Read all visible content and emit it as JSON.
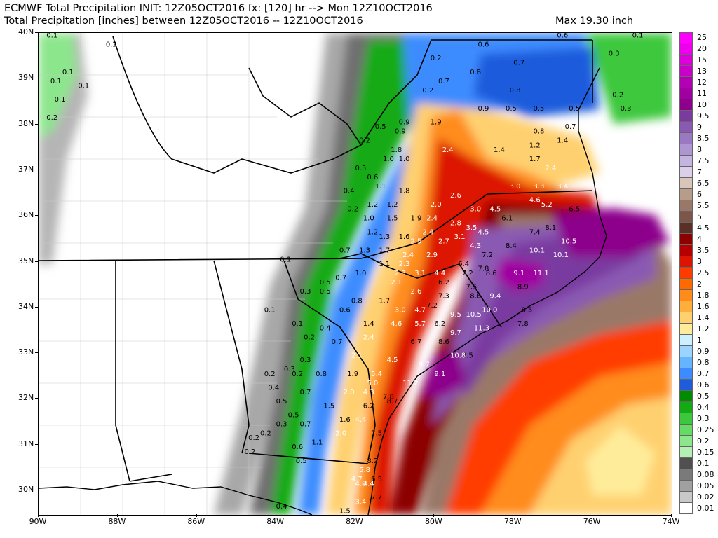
{
  "header": {
    "title_line1": "ECMWF Total Precipitation INIT: 12Z05OCT2016 fx: [120] hr --> Mon 12Z10OCT2016",
    "title_line2": "Total Precipitation [inches] between 12Z05OCT2016 -- 12Z10OCT2016",
    "max_text": "Max 19.30 inch"
  },
  "axes": {
    "lat_labels": [
      "40N",
      "39N",
      "38N",
      "37N",
      "36N",
      "35N",
      "34N",
      "33N",
      "32N",
      "31N",
      "30N"
    ],
    "lon_labels": [
      "90W",
      "88W",
      "86W",
      "84W",
      "82W",
      "80W",
      "78W",
      "76W",
      "74W"
    ]
  },
  "colorbar": {
    "levels": [
      "25",
      "20",
      "15",
      "13",
      "12",
      "11",
      "10",
      "9.5",
      "9",
      "8.5",
      "8",
      "7.5",
      "7",
      "6.5",
      "6",
      "5.5",
      "5",
      "4.5",
      "4",
      "3.5",
      "3",
      "2.5",
      "2",
      "1.8",
      "1.6",
      "1.4",
      "1.2",
      "1",
      "0.9",
      "0.8",
      "0.7",
      "0.6",
      "0.5",
      "0.4",
      "0.3",
      "0.25",
      "0.2",
      "0.15",
      "0.1",
      "0.08",
      "0.05",
      "0.02",
      "0.01"
    ],
    "colors": [
      "#ff00ff",
      "#ee00ee",
      "#dd00dd",
      "#c800c8",
      "#b400b4",
      "#a000a0",
      "#8c008c",
      "#7a3aa0",
      "#8a5ab2",
      "#9a78c2",
      "#ae96d2",
      "#c4b4e0",
      "#dccfea",
      "#d8c4b8",
      "#b89c8a",
      "#9a7868",
      "#7c5648",
      "#5a3026",
      "#8c0000",
      "#b40000",
      "#dc1400",
      "#ff3c00",
      "#ff6a00",
      "#ff8c1a",
      "#ffae3c",
      "#ffd070",
      "#ffec9a",
      "#cdefff",
      "#9ad4ff",
      "#64b4ff",
      "#3c8cff",
      "#1e5cdc",
      "#008c00",
      "#14aa14",
      "#3cc83c",
      "#64dc64",
      "#8ce68c",
      "#b4f0b4",
      "#505050",
      "#7a7a7a",
      "#a0a0a0",
      "#c8c8c8",
      "#ffffff"
    ]
  },
  "map_values": [
    {
      "v": "0.1",
      "lon": -89.8,
      "lat": 39.9
    },
    {
      "v": "0.2",
      "lon": -88.3,
      "lat": 39.7
    },
    {
      "v": "0.1",
      "lon": -89.4,
      "lat": 39.1
    },
    {
      "v": "0.1",
      "lon": -89.7,
      "lat": 38.9
    },
    {
      "v": "0.1",
      "lon": -89.0,
      "lat": 38.8
    },
    {
      "v": "0.1",
      "lon": -89.6,
      "lat": 38.5
    },
    {
      "v": "0.2",
      "lon": -89.8,
      "lat": 38.1
    },
    {
      "v": "0.6",
      "lon": -78.9,
      "lat": 39.7
    },
    {
      "v": "0.6",
      "lon": -76.9,
      "lat": 39.9
    },
    {
      "v": "0.2",
      "lon": -76.3,
      "lat": 40.0
    },
    {
      "v": "0.1",
      "lon": -75.0,
      "lat": 39.9
    },
    {
      "v": "0.2",
      "lon": -80.1,
      "lat": 39.4
    },
    {
      "v": "0.7",
      "lon": -79.9,
      "lat": 38.9
    },
    {
      "v": "0.8",
      "lon": -79.1,
      "lat": 39.1
    },
    {
      "v": "0.7",
      "lon": -78.0,
      "lat": 39.3
    },
    {
      "v": "0.2",
      "lon": -80.3,
      "lat": 38.7
    },
    {
      "v": "0.8",
      "lon": -78.1,
      "lat": 38.7
    },
    {
      "v": "0.3",
      "lon": -75.6,
      "lat": 39.5
    },
    {
      "v": "0.2",
      "lon": -75.5,
      "lat": 38.6
    },
    {
      "v": "0.9",
      "lon": -78.9,
      "lat": 38.3
    },
    {
      "v": "0.5",
      "lon": -78.2,
      "lat": 38.3
    },
    {
      "v": "0.5",
      "lon": -77.5,
      "lat": 38.3
    },
    {
      "v": "0.5",
      "lon": -76.6,
      "lat": 38.3
    },
    {
      "v": "0.3",
      "lon": -75.3,
      "lat": 38.3
    },
    {
      "v": "0.5",
      "lon": -81.5,
      "lat": 37.9
    },
    {
      "v": "0.9",
      "lon": -80.9,
      "lat": 38.0
    },
    {
      "v": "1.9",
      "lon": -80.1,
      "lat": 38.0
    },
    {
      "v": "0.9",
      "lon": -81.0,
      "lat": 37.8
    },
    {
      "v": "0.2",
      "lon": -81.9,
      "lat": 37.6
    },
    {
      "v": "0.8",
      "lon": -77.5,
      "lat": 37.8
    },
    {
      "v": "0.7",
      "lon": -76.7,
      "lat": 37.9
    },
    {
      "v": "1.8",
      "lon": -81.1,
      "lat": 37.4
    },
    {
      "v": "2.4",
      "lon": -79.8,
      "lat": 37.4
    },
    {
      "v": "1.4",
      "lon": -78.5,
      "lat": 37.4
    },
    {
      "v": "1.2",
      "lon": -77.6,
      "lat": 37.5
    },
    {
      "v": "1.4",
      "lon": -76.9,
      "lat": 37.6
    },
    {
      "v": "1.0",
      "lon": -81.3,
      "lat": 37.2
    },
    {
      "v": "1.0",
      "lon": -80.9,
      "lat": 37.2
    },
    {
      "v": "1.7",
      "lon": -77.6,
      "lat": 37.2
    },
    {
      "v": "2.4",
      "lon": -77.2,
      "lat": 37.0
    },
    {
      "v": "0.5",
      "lon": -82.0,
      "lat": 37.0
    },
    {
      "v": "0.6",
      "lon": -81.7,
      "lat": 36.8
    },
    {
      "v": "1.1",
      "lon": -81.5,
      "lat": 36.6
    },
    {
      "v": "1.8",
      "lon": -80.9,
      "lat": 36.5
    },
    {
      "v": "2.6",
      "lon": -79.6,
      "lat": 36.4
    },
    {
      "v": "3.0",
      "lon": -78.1,
      "lat": 36.6
    },
    {
      "v": "3.3",
      "lon": -77.5,
      "lat": 36.6
    },
    {
      "v": "3.4",
      "lon": -76.9,
      "lat": 36.6
    },
    {
      "v": "0.4",
      "lon": -82.3,
      "lat": 36.5
    },
    {
      "v": "1.2",
      "lon": -81.7,
      "lat": 36.2
    },
    {
      "v": "1.2",
      "lon": -81.2,
      "lat": 36.2
    },
    {
      "v": "2.0",
      "lon": -80.1,
      "lat": 36.2
    },
    {
      "v": "4.6",
      "lon": -77.6,
      "lat": 36.3
    },
    {
      "v": "5.2",
      "lon": -77.3,
      "lat": 36.2
    },
    {
      "v": "6.5",
      "lon": -76.6,
      "lat": 36.1
    },
    {
      "v": "0.2",
      "lon": -82.2,
      "lat": 36.1
    },
    {
      "v": "1.0",
      "lon": -81.8,
      "lat": 35.9
    },
    {
      "v": "1.5",
      "lon": -81.2,
      "lat": 35.9
    },
    {
      "v": "1.9",
      "lon": -80.6,
      "lat": 35.9
    },
    {
      "v": "2.4",
      "lon": -80.2,
      "lat": 35.9
    },
    {
      "v": "3.0",
      "lon": -79.1,
      "lat": 36.1
    },
    {
      "v": "4.5",
      "lon": -78.6,
      "lat": 36.1
    },
    {
      "v": "2.8",
      "lon": -79.6,
      "lat": 35.8
    },
    {
      "v": "6.1",
      "lon": -78.3,
      "lat": 35.9
    },
    {
      "v": "3.5",
      "lon": -79.2,
      "lat": 35.7
    },
    {
      "v": "4.5",
      "lon": -78.9,
      "lat": 35.6
    },
    {
      "v": "7.4",
      "lon": -77.6,
      "lat": 35.6
    },
    {
      "v": "8.1",
      "lon": -77.2,
      "lat": 35.7
    },
    {
      "v": "1.2",
      "lon": -81.7,
      "lat": 35.6
    },
    {
      "v": "1.3",
      "lon": -81.4,
      "lat": 35.5
    },
    {
      "v": "1.6",
      "lon": -80.9,
      "lat": 35.5
    },
    {
      "v": "2.4",
      "lon": -80.3,
      "lat": 35.6
    },
    {
      "v": "2.5",
      "lon": -80.6,
      "lat": 35.4
    },
    {
      "v": "2.7",
      "lon": -79.9,
      "lat": 35.4
    },
    {
      "v": "3.1",
      "lon": -79.5,
      "lat": 35.5
    },
    {
      "v": "4.3",
      "lon": -79.1,
      "lat": 35.3
    },
    {
      "v": "8.4",
      "lon": -78.2,
      "lat": 35.3
    },
    {
      "v": "10.5",
      "lon": -76.8,
      "lat": 35.4
    },
    {
      "v": "0.7",
      "lon": -82.4,
      "lat": 35.2
    },
    {
      "v": "1.3",
      "lon": -81.9,
      "lat": 35.2
    },
    {
      "v": "1.7",
      "lon": -81.4,
      "lat": 35.2
    },
    {
      "v": "2.4",
      "lon": -80.8,
      "lat": 35.1
    },
    {
      "v": "2.9",
      "lon": -80.2,
      "lat": 35.1
    },
    {
      "v": "7.2",
      "lon": -78.8,
      "lat": 35.1
    },
    {
      "v": "10.1",
      "lon": -77.6,
      "lat": 35.2
    },
    {
      "v": "10.1",
      "lon": -77.0,
      "lat": 35.1
    },
    {
      "v": "0.1",
      "lon": -83.9,
      "lat": 35.0
    },
    {
      "v": "1.1",
      "lon": -81.4,
      "lat": 34.9
    },
    {
      "v": "2.3",
      "lon": -80.9,
      "lat": 34.9
    },
    {
      "v": "6.4",
      "lon": -79.4,
      "lat": 34.9
    },
    {
      "v": "7.8",
      "lon": -78.9,
      "lat": 34.8
    },
    {
      "v": "1.0",
      "lon": -82.0,
      "lat": 34.7
    },
    {
      "v": "2.3",
      "lon": -81.0,
      "lat": 34.7
    },
    {
      "v": "3.1",
      "lon": -80.5,
      "lat": 34.7
    },
    {
      "v": "4.4",
      "lon": -80.0,
      "lat": 34.7
    },
    {
      "v": "7.2",
      "lon": -79.3,
      "lat": 34.7
    },
    {
      "v": "8.6",
      "lon": -78.7,
      "lat": 34.7
    },
    {
      "v": "9.1",
      "lon": -78.0,
      "lat": 34.7
    },
    {
      "v": "11.1",
      "lon": -77.5,
      "lat": 34.7
    },
    {
      "v": "0.5",
      "lon": -82.9,
      "lat": 34.5
    },
    {
      "v": "0.7",
      "lon": -82.5,
      "lat": 34.6
    },
    {
      "v": "2.1",
      "lon": -81.1,
      "lat": 34.5
    },
    {
      "v": "6.2",
      "lon": -79.9,
      "lat": 34.5
    },
    {
      "v": "7.5",
      "lon": -79.2,
      "lat": 34.4
    },
    {
      "v": "8.9",
      "lon": -77.9,
      "lat": 34.4
    },
    {
      "v": "0.3",
      "lon": -83.4,
      "lat": 34.3
    },
    {
      "v": "0.5",
      "lon": -82.9,
      "lat": 34.3
    },
    {
      "v": "2.6",
      "lon": -80.6,
      "lat": 34.3
    },
    {
      "v": "7.3",
      "lon": -79.9,
      "lat": 34.2
    },
    {
      "v": "8.6",
      "lon": -79.1,
      "lat": 34.2
    },
    {
      "v": "9.4",
      "lon": -78.6,
      "lat": 34.2
    },
    {
      "v": "0.8",
      "lon": -82.1,
      "lat": 34.1
    },
    {
      "v": "1.7",
      "lon": -81.4,
      "lat": 34.1
    },
    {
      "v": "7.2",
      "lon": -80.2,
      "lat": 34.0
    },
    {
      "v": "0.1",
      "lon": -84.3,
      "lat": 33.9
    },
    {
      "v": "0.6",
      "lon": -82.4,
      "lat": 33.9
    },
    {
      "v": "3.0",
      "lon": -81.0,
      "lat": 33.9
    },
    {
      "v": "4.7",
      "lon": -80.5,
      "lat": 33.9
    },
    {
      "v": "10.0",
      "lon": -78.8,
      "lat": 33.9
    },
    {
      "v": "8.5",
      "lon": -77.8,
      "lat": 33.9
    },
    {
      "v": "9.5",
      "lon": -79.6,
      "lat": 33.8
    },
    {
      "v": "10.5",
      "lon": -79.2,
      "lat": 33.8
    },
    {
      "v": "0.1",
      "lon": -83.6,
      "lat": 33.6
    },
    {
      "v": "0.4",
      "lon": -82.9,
      "lat": 33.5
    },
    {
      "v": "1.4",
      "lon": -81.8,
      "lat": 33.6
    },
    {
      "v": "4.6",
      "lon": -81.1,
      "lat": 33.6
    },
    {
      "v": "5.7",
      "lon": -80.5,
      "lat": 33.6
    },
    {
      "v": "6.2",
      "lon": -80.0,
      "lat": 33.6
    },
    {
      "v": "7.8",
      "lon": -77.9,
      "lat": 33.6
    },
    {
      "v": "9.7",
      "lon": -79.6,
      "lat": 33.4
    },
    {
      "v": "11.3",
      "lon": -79.0,
      "lat": 33.5
    },
    {
      "v": "0.2",
      "lon": -83.3,
      "lat": 33.3
    },
    {
      "v": "0.7",
      "lon": -82.6,
      "lat": 33.2
    },
    {
      "v": "2.4",
      "lon": -81.8,
      "lat": 33.3
    },
    {
      "v": "6.7",
      "lon": -80.6,
      "lat": 33.2
    },
    {
      "v": "8.6",
      "lon": -79.9,
      "lat": 33.2
    },
    {
      "v": "2.1",
      "lon": -82.1,
      "lat": 32.9
    },
    {
      "v": "4.5",
      "lon": -81.2,
      "lat": 32.8
    },
    {
      "v": "8.5",
      "lon": -79.3,
      "lat": 32.9
    },
    {
      "v": "0.3",
      "lon": -83.4,
      "lat": 32.8
    },
    {
      "v": "10.8",
      "lon": -79.6,
      "lat": 32.9
    },
    {
      "v": "9.7",
      "lon": -80.4,
      "lat": 32.7
    },
    {
      "v": "9.1",
      "lon": -80.0,
      "lat": 32.5
    },
    {
      "v": "0.2",
      "lon": -84.3,
      "lat": 32.5
    },
    {
      "v": "0.3",
      "lon": -83.8,
      "lat": 32.6
    },
    {
      "v": "0.2",
      "lon": -83.6,
      "lat": 32.5
    },
    {
      "v": "0.8",
      "lon": -83.0,
      "lat": 32.5
    },
    {
      "v": "1.9",
      "lon": -82.2,
      "lat": 32.5
    },
    {
      "v": "5.4",
      "lon": -81.6,
      "lat": 32.5
    },
    {
      "v": "5.0",
      "lon": -81.7,
      "lat": 32.3
    },
    {
      "v": "11.2",
      "lon": -80.8,
      "lat": 32.3
    },
    {
      "v": "0.4",
      "lon": -84.2,
      "lat": 32.2
    },
    {
      "v": "0.7",
      "lon": -83.4,
      "lat": 32.1
    },
    {
      "v": "2.0",
      "lon": -82.3,
      "lat": 32.1
    },
    {
      "v": "4.3",
      "lon": -81.8,
      "lat": 32.1
    },
    {
      "v": "7.8",
      "lon": -81.3,
      "lat": 32.0
    },
    {
      "v": "8.7",
      "lon": -81.2,
      "lat": 31.9
    },
    {
      "v": "0.5",
      "lon": -84.0,
      "lat": 31.9
    },
    {
      "v": "1.5",
      "lon": -82.8,
      "lat": 31.8
    },
    {
      "v": "6.2",
      "lon": -81.8,
      "lat": 31.8
    },
    {
      "v": "0.5",
      "lon": -83.7,
      "lat": 31.6
    },
    {
      "v": "1.6",
      "lon": -82.4,
      "lat": 31.5
    },
    {
      "v": "4.4",
      "lon": -82.0,
      "lat": 31.5
    },
    {
      "v": "0.3",
      "lon": -84.0,
      "lat": 31.4
    },
    {
      "v": "0.7",
      "lon": -83.4,
      "lat": 31.4
    },
    {
      "v": "0.2",
      "lon": -84.4,
      "lat": 31.2
    },
    {
      "v": "0.2",
      "lon": -84.7,
      "lat": 31.1
    },
    {
      "v": "2.0",
      "lon": -82.5,
      "lat": 31.2
    },
    {
      "v": "7.5",
      "lon": -81.6,
      "lat": 31.2
    },
    {
      "v": "1.1",
      "lon": -83.1,
      "lat": 31.0
    },
    {
      "v": "0.6",
      "lon": -83.6,
      "lat": 30.9
    },
    {
      "v": "0.2",
      "lon": -84.8,
      "lat": 30.8
    },
    {
      "v": "0.5",
      "lon": -83.5,
      "lat": 30.6
    },
    {
      "v": "8.2",
      "lon": -81.7,
      "lat": 30.6
    },
    {
      "v": "5.8",
      "lon": -81.9,
      "lat": 30.4
    },
    {
      "v": "4.7",
      "lon": -82.1,
      "lat": 30.2
    },
    {
      "v": "4.0",
      "lon": -82.0,
      "lat": 30.1
    },
    {
      "v": "4.4",
      "lon": -81.8,
      "lat": 30.1
    },
    {
      "v": "6.5",
      "lon": -81.6,
      "lat": 30.2
    },
    {
      "v": "7.7",
      "lon": -81.6,
      "lat": 29.8
    },
    {
      "v": "0.4",
      "lon": -84.0,
      "lat": 29.6
    },
    {
      "v": "0.4",
      "lon": -83.3,
      "lat": 29.4
    },
    {
      "v": "3.4",
      "lon": -82.0,
      "lat": 29.7
    },
    {
      "v": "1.5",
      "lon": -82.4,
      "lat": 29.5
    }
  ]
}
